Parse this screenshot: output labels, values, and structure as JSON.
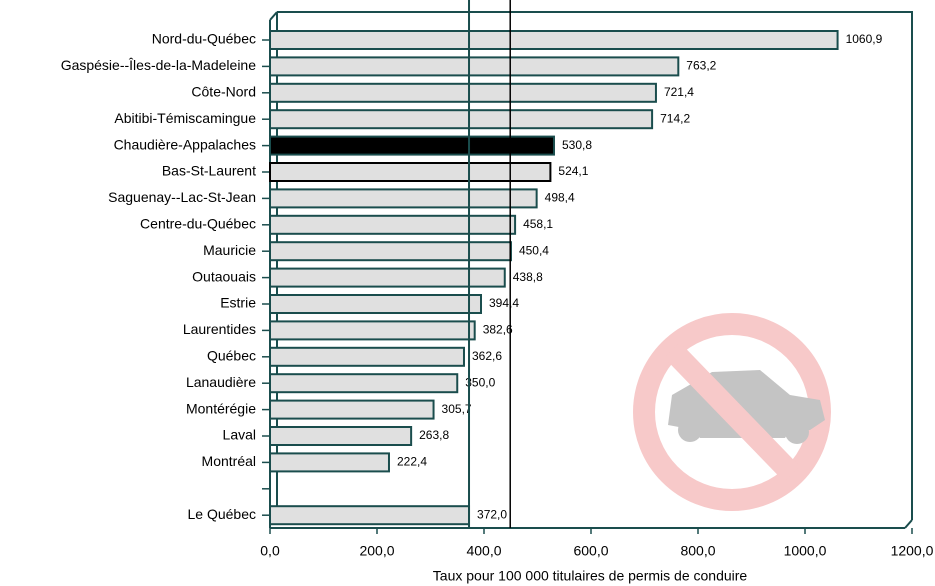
{
  "chart_data": {
    "type": "hbar",
    "xlabel": "Taux pour 100 000 titulaires de permis de conduire",
    "categories": [
      "Nord-du-Québec",
      "Gaspésie--Îles-de-la-Madeleine",
      "Côte-Nord",
      "Abitibi-Témiscamingue",
      "Chaudière-Appalaches",
      "Bas-St-Laurent",
      "Saguenay--Lac-St-Jean",
      "Centre-du-Québec",
      "Mauricie",
      "Outaouais",
      "Estrie",
      "Laurentides",
      "Québec",
      "Lanaudière",
      "Montérégie",
      "Laval",
      "Montréal",
      null,
      "Le Québec"
    ],
    "values": [
      1060.9,
      763.2,
      721.4,
      714.2,
      530.8,
      524.1,
      498.4,
      458.1,
      450.4,
      438.8,
      394.4,
      382.6,
      362.6,
      350.0,
      305.7,
      263.8,
      222.4,
      null,
      372.0
    ],
    "value_labels": [
      "1060,9",
      "763,2",
      "721,4",
      "714,2",
      "530,8",
      "524,1",
      "498,4",
      "458,1",
      "450,4",
      "438,8",
      "394,4",
      "382,6",
      "362,6",
      "350,0",
      "305,7",
      "263,8",
      "222,4",
      null,
      "372,0"
    ],
    "colors": [
      "#e0e0e0",
      "#e0e0e0",
      "#e0e0e0",
      "#e0e0e0",
      "#000000",
      "#e0e0e0",
      "#e0e0e0",
      "#e0e0e0",
      "#e0e0e0",
      "#e0e0e0",
      "#e0e0e0",
      "#e0e0e0",
      "#e0e0e0",
      "#e0e0e0",
      "#e0e0e0",
      "#e0e0e0",
      "#e0e0e0",
      null,
      "#e0e0e0"
    ],
    "edge_colors": [
      "#1a4d4d",
      "#1a4d4d",
      "#1a4d4d",
      "#1a4d4d",
      "#1a4d4d",
      "#000000",
      "#1a4d4d",
      "#1a4d4d",
      "#1a4d4d",
      "#1a4d4d",
      "#1a4d4d",
      "#1a4d4d",
      "#1a4d4d",
      "#1a4d4d",
      "#1a4d4d",
      "#1a4d4d",
      "#1a4d4d",
      null,
      "#1a4d4d"
    ],
    "reference_value": 449,
    "xlim": [
      0,
      1200
    ],
    "xticks": [
      {
        "value": 0,
        "label": "0,0"
      },
      {
        "value": 200,
        "label": "200,0"
      },
      {
        "value": 400,
        "label": "400,0"
      },
      {
        "value": 600,
        "label": "600,0"
      },
      {
        "value": 800,
        "label": "800,0"
      },
      {
        "value": 1000,
        "label": "1000,0"
      },
      {
        "value": 1200,
        "label": "1200,0"
      }
    ]
  }
}
